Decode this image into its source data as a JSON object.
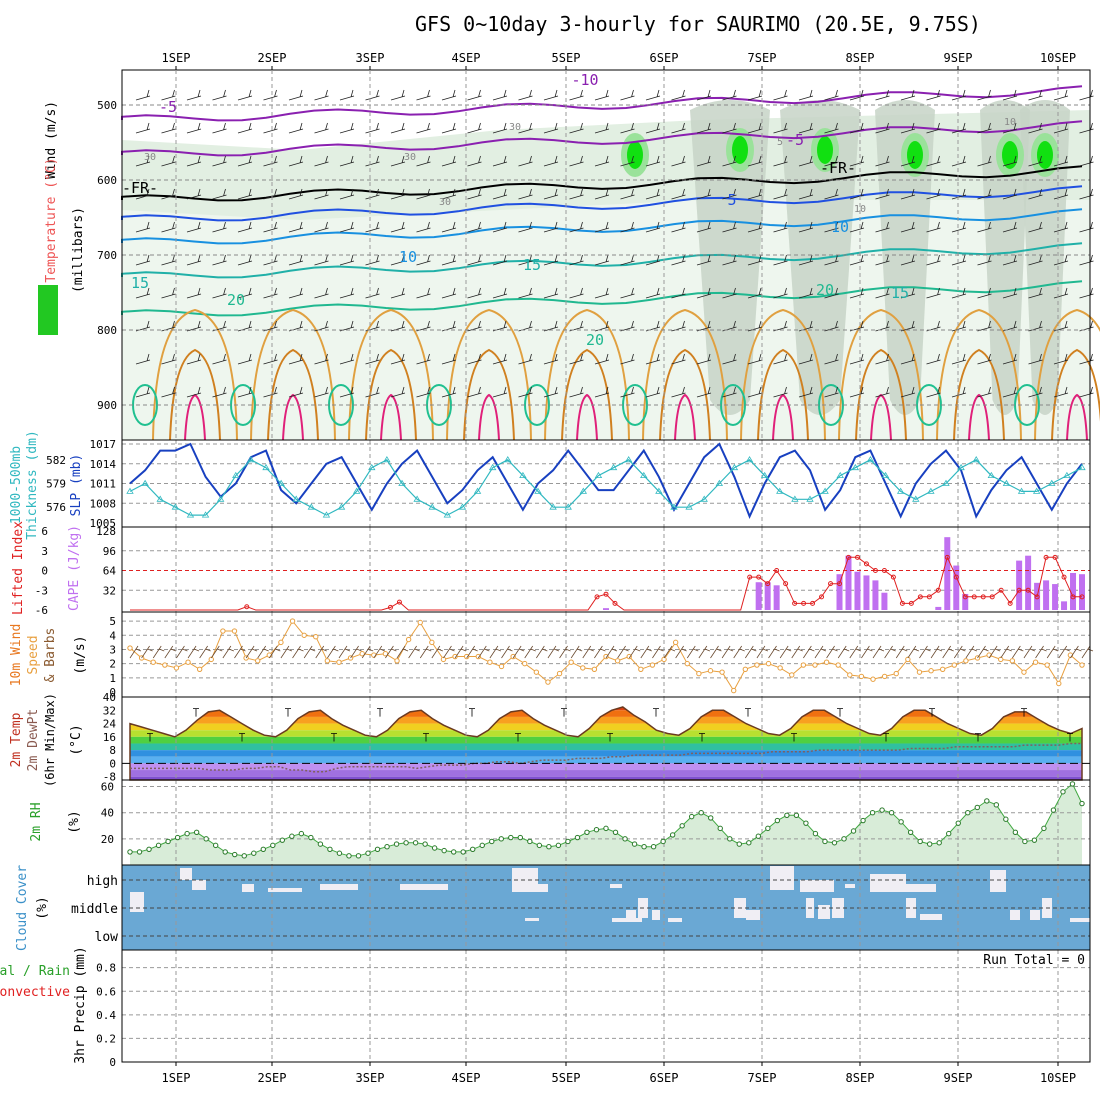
{
  "title": "GFS 0~10day 3-hourly for SAURIMO (20.5E, 9.75S)",
  "dates": [
    "1SEP",
    "2SEP",
    "3SEP",
    "4SEP",
    "5SEP",
    "6SEP",
    "7SEP",
    "8SEP",
    "9SEP",
    "10SEP"
  ],
  "colors": {
    "rh": "#22c822",
    "temp": "#ee5555",
    "wind": "#000000",
    "slp": "#1840c0",
    "thick": "#30b8c0",
    "li": "#e02020",
    "cape": "#c070f0",
    "wspd": "#e8a040",
    "rh2m": "#40a840",
    "cloud_bg": "#6aa8d4",
    "cloud": "#f0eef4"
  },
  "panels": {
    "upper": {
      "ylabels": [
        "Wind (m/s)",
        "Temperature (°C)",
        "RH (%)"
      ],
      "axis_label": "(millibars)",
      "ticks": [
        "500",
        "600",
        "700",
        "800",
        "900"
      ],
      "contour_labels": [
        "-10",
        "-5",
        "-5",
        "5",
        "10",
        "10",
        "15",
        "15",
        "20",
        "20",
        "20",
        "15",
        "30",
        "30",
        "10",
        "30",
        "30",
        "10",
        "5",
        "-FR-",
        "-FR-"
      ]
    },
    "slp": {
      "left_labels": [
        "1000-500mb",
        "Thickness (dm)"
      ],
      "right_label": "SLP (mb)",
      "left_ticks": [
        "582",
        "579",
        "576"
      ],
      "right_ticks": [
        "1017",
        "1014",
        "1011",
        "1008",
        "1005"
      ]
    },
    "cape": {
      "left_label": "Lifted Index",
      "right_label": "CAPE (J/kg)",
      "left_ticks": [
        "-6",
        "-3",
        "0",
        "3",
        "6"
      ],
      "right_ticks": [
        "128",
        "96",
        "64",
        "32"
      ]
    },
    "wind10": {
      "labels": [
        "10m Wind",
        "Speed",
        "& Barbs"
      ],
      "unit": "(m/s)",
      "ticks": [
        "5",
        "4",
        "3",
        "2",
        "1",
        "0"
      ]
    },
    "temp2m": {
      "labels": [
        "2m Temp",
        "2m DewPt",
        "(6hr Min/Max)"
      ],
      "unit": "(°C)",
      "ticks": [
        "40",
        "32",
        "24",
        "16",
        "8",
        "0",
        "-8"
      ]
    },
    "rh2m": {
      "labels": [
        "2m RH"
      ],
      "unit": "(%)",
      "ticks": [
        "60",
        "40",
        "20"
      ]
    },
    "cloud": {
      "labels": [
        "Cloud Cover"
      ],
      "unit": "(%)",
      "ticks": [
        "high",
        "middle",
        "low"
      ]
    },
    "precip": {
      "labels": [
        "Total / Rain",
        "Convective"
      ],
      "axis_label": "3hr Precip (mm)",
      "ticks": [
        "0.8",
        "0.6",
        "0.4",
        "0.2",
        "0"
      ],
      "run_total": "Run Total = 0"
    }
  },
  "chart_data": [
    {
      "type": "line",
      "title": "",
      "ylabel": "SLP (mb)",
      "ylim": [
        1005,
        1017
      ],
      "series": [
        {
          "name": "SLP (mb)",
          "values": [
            1011,
            1013,
            1016,
            1016,
            1017,
            1012,
            1009,
            1011,
            1015,
            1016,
            1010,
            1008,
            1011,
            1014,
            1015,
            1011,
            1007,
            1011,
            1014,
            1016,
            1012,
            1008,
            1010,
            1013,
            1015,
            1011,
            1007,
            1011,
            1013,
            1016,
            1013,
            1010,
            1010,
            1013,
            1016,
            1012,
            1007,
            1011,
            1015,
            1017,
            1012,
            1006,
            1011,
            1015,
            1016,
            1013,
            1007,
            1010,
            1015,
            1016,
            1011,
            1006,
            1011,
            1014,
            1016,
            1013,
            1006,
            1010,
            1013,
            1015,
            1011,
            1007,
            1011,
            1014
          ]
        },
        {
          "name": "1000-500mb Thickness (dm)",
          "values": [
            578,
            579,
            577,
            576,
            575,
            575,
            577,
            580,
            582,
            581,
            579,
            577,
            576,
            575,
            576,
            578,
            581,
            582,
            579,
            577,
            576,
            575,
            576,
            578,
            581,
            582,
            580,
            578,
            576,
            576,
            578,
            580,
            581,
            582,
            580,
            578,
            576,
            576,
            577,
            579,
            581,
            582,
            580,
            578,
            577,
            577,
            578,
            580,
            581,
            582,
            580,
            578,
            577,
            578,
            579,
            581,
            582,
            580,
            579,
            578,
            578,
            579,
            580,
            581
          ]
        }
      ]
    },
    {
      "type": "bar",
      "title": "",
      "ylabel": "CAPE (J/kg)",
      "ylim": [
        0,
        128
      ],
      "series": [
        {
          "name": "CAPE (J/kg)",
          "values": [
            0,
            0,
            0,
            0,
            0,
            0,
            0,
            0,
            0,
            0,
            0,
            0,
            0,
            0,
            0,
            0,
            0,
            0,
            0,
            0,
            0,
            0,
            0,
            0,
            0,
            0,
            0,
            0,
            0,
            0,
            0,
            0,
            0,
            0,
            0,
            0,
            0,
            0,
            0,
            0,
            0,
            0,
            0,
            0,
            0,
            0,
            0,
            0,
            0,
            0,
            0,
            0,
            0,
            3,
            0,
            0,
            0,
            0,
            0,
            0,
            0,
            0,
            0,
            0,
            0,
            0,
            0,
            0,
            0,
            0,
            45,
            45,
            40,
            0,
            0,
            0,
            0,
            0,
            0,
            58,
            88,
            62,
            56,
            48,
            28,
            0,
            0,
            0,
            0,
            0,
            5,
            118,
            72,
            26,
            0,
            0,
            0,
            0,
            0,
            80,
            88,
            44,
            48,
            42,
            14,
            60,
            58
          ]
        },
        {
          "name": "Lifted Index",
          "values": [
            6,
            6,
            6,
            6,
            6,
            6,
            6,
            6,
            6,
            6,
            6,
            6,
            6,
            5.5,
            6,
            6,
            6,
            6,
            6,
            6,
            6,
            6,
            6,
            6,
            6,
            6,
            6,
            6,
            6,
            5.6,
            4.8,
            6,
            6,
            6,
            6,
            6,
            6,
            6,
            6,
            6,
            6,
            6,
            6,
            6,
            6,
            6,
            6,
            6,
            6,
            6,
            6,
            6,
            4.0,
            3.6,
            5.0,
            6,
            6,
            6,
            6,
            6,
            6,
            6,
            6,
            6,
            6,
            6,
            6,
            6,
            6,
            1,
            1,
            2,
            0,
            2,
            5,
            5,
            5,
            4,
            2,
            2,
            -2,
            -2,
            -1,
            0,
            0,
            1,
            5,
            5,
            4,
            4,
            3,
            -2,
            1,
            4,
            4,
            4,
            4,
            3,
            5,
            3,
            3,
            4,
            -2,
            -2,
            1,
            4,
            4
          ]
        }
      ]
    },
    {
      "type": "line",
      "title": "",
      "ylabel": "(m/s)",
      "ylim": [
        0,
        5
      ],
      "series": [
        {
          "name": "10m Wind Speed",
          "values": [
            3.1,
            2.4,
            2.1,
            1.9,
            1.7,
            2.1,
            1.6,
            2.3,
            4.3,
            4.3,
            2.4,
            2.2,
            2.6,
            3.5,
            5.0,
            4.0,
            3.9,
            2.2,
            2.1,
            2.4,
            2.7,
            2.6,
            2.7,
            2.2,
            3.7,
            4.9,
            3.5,
            2.3,
            2.5,
            2.5,
            2.5,
            2.1,
            1.8,
            2.5,
            2.0,
            1.4,
            0.7,
            1.3,
            2.1,
            1.7,
            1.6,
            2.5,
            2.2,
            2.5,
            1.6,
            1.9,
            2.3,
            3.5,
            2.0,
            1.3,
            1.5,
            1.4,
            0.1,
            1.6,
            1.9,
            2.0,
            1.7,
            1.2,
            1.9,
            1.9,
            2.1,
            1.9,
            1.2,
            1.1,
            0.9,
            1.1,
            1.3,
            2.3,
            1.4,
            1.5,
            1.6,
            1.9,
            2.2,
            2.4,
            2.6,
            2.3,
            2.2,
            1.4,
            2.1,
            1.9,
            0.6,
            2.6,
            1.9
          ]
        }
      ]
    },
    {
      "type": "area",
      "title": "",
      "ylabel": "(°C)",
      "ylim": [
        -10,
        40
      ],
      "series": [
        {
          "name": "2m Temp",
          "values": [
            24,
            22,
            20,
            18,
            16,
            20,
            26,
            31,
            32,
            28,
            24,
            20,
            17,
            16,
            20,
            27,
            31,
            32,
            27,
            23,
            20,
            17,
            16,
            20,
            27,
            31,
            32,
            27,
            23,
            20,
            17,
            16,
            20,
            27,
            31,
            32,
            27,
            23,
            20,
            17,
            16,
            21,
            28,
            32,
            34,
            29,
            25,
            20,
            18,
            17,
            21,
            28,
            32,
            32,
            28,
            24,
            21,
            18,
            17,
            21,
            28,
            32,
            32,
            28,
            24,
            21,
            18,
            17,
            21,
            28,
            32,
            32,
            28,
            24,
            21,
            18,
            17,
            21,
            28,
            31,
            31,
            27,
            23,
            20,
            18,
            21
          ]
        },
        {
          "name": "2m DewPt",
          "values": [
            -3,
            -3,
            -3,
            -3,
            -3,
            -3,
            -3,
            -4,
            -4,
            -4,
            -3,
            -3,
            -2,
            -2,
            -4,
            -4,
            -5,
            -5,
            -3,
            -2,
            -2,
            -2,
            -2,
            -2,
            -2,
            -3,
            -2,
            -1,
            -1,
            -1,
            0,
            0,
            1,
            1,
            0,
            1,
            2,
            2,
            2,
            3,
            3,
            3,
            4,
            4,
            5,
            5,
            5,
            5,
            5,
            6,
            6,
            6,
            6,
            6,
            6,
            6,
            7,
            7,
            7,
            7,
            8,
            8,
            8,
            8,
            8,
            8,
            8,
            8,
            9,
            9,
            9,
            9,
            10,
            10,
            10,
            10,
            10,
            10,
            11,
            11,
            11,
            11,
            12,
            12
          ]
        }
      ]
    },
    {
      "type": "area",
      "title": "",
      "ylabel": "(%)",
      "ylim": [
        0,
        65
      ],
      "series": [
        {
          "name": "2m RH",
          "values": [
            10,
            10,
            12,
            15,
            18,
            21,
            24,
            25,
            20,
            15,
            10,
            8,
            7,
            9,
            12,
            15,
            19,
            22,
            24,
            21,
            16,
            12,
            9,
            7,
            7,
            9,
            12,
            14,
            16,
            17,
            17,
            16,
            13,
            11,
            10,
            10,
            12,
            15,
            18,
            20,
            21,
            21,
            18,
            15,
            14,
            15,
            18,
            21,
            25,
            27,
            28,
            25,
            20,
            16,
            14,
            14,
            18,
            23,
            30,
            37,
            40,
            36,
            28,
            20,
            16,
            17,
            22,
            28,
            34,
            38,
            38,
            32,
            24,
            18,
            17,
            20,
            26,
            34,
            40,
            42,
            40,
            33,
            25,
            18,
            16,
            17,
            24,
            32,
            40,
            44,
            49,
            46,
            35,
            25,
            18,
            19,
            28,
            42,
            56,
            62,
            47
          ]
        }
      ]
    }
  ]
}
